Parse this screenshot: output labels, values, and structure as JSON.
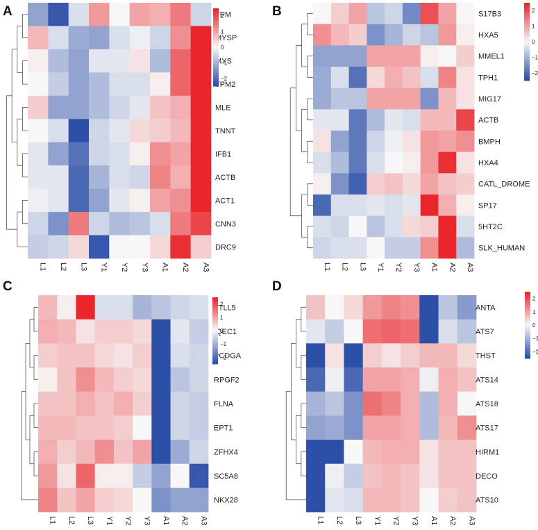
{
  "colors": {
    "low": "#2c4fa8",
    "mid": "#f7f7f7",
    "high": "#e8262b"
  },
  "chart_data": [
    {
      "type": "heatmap",
      "panel_label": "A",
      "columns": [
        "L1",
        "L2",
        "L3",
        "Y1",
        "Y2",
        "Y3",
        "A1",
        "A2",
        "A3"
      ],
      "rows": [
        "TPM",
        "MYSP",
        "MYS",
        "TPM2",
        "MLE",
        "TNNT",
        "IFB1",
        "ACTB",
        "ACT1",
        "CNN3",
        "DRC9"
      ],
      "values": [
        [
          -1.0,
          -1.9,
          -0.3,
          0.9,
          0.0,
          0.8,
          0.7,
          1.2,
          -0.4
        ],
        [
          0.6,
          -0.3,
          -0.9,
          -1.0,
          -0.3,
          -0.1,
          -0.4,
          1.0,
          2.0
        ],
        [
          0.1,
          -0.7,
          -1.0,
          -0.2,
          -0.2,
          0.2,
          -0.7,
          1.4,
          2.0
        ],
        [
          0.0,
          -0.5,
          -1.0,
          -0.7,
          -0.3,
          -0.3,
          0.1,
          1.4,
          2.0
        ],
        [
          0.4,
          -1.0,
          -1.0,
          -0.7,
          -0.4,
          -0.2,
          0.5,
          0.7,
          2.0
        ],
        [
          0.0,
          -0.3,
          -2.0,
          -0.4,
          -0.2,
          0.3,
          0.4,
          0.6,
          2.0
        ],
        [
          -0.2,
          -1.0,
          -1.6,
          -0.4,
          -0.3,
          0.1,
          1.0,
          0.8,
          2.0
        ],
        [
          -0.2,
          -0.2,
          -1.7,
          -0.8,
          -0.3,
          -0.4,
          1.1,
          0.7,
          2.0
        ],
        [
          -0.1,
          -0.2,
          -1.7,
          -1.0,
          -0.2,
          0.1,
          0.8,
          1.0,
          2.0
        ],
        [
          -0.4,
          -1.2,
          1.2,
          -0.4,
          -0.7,
          -0.6,
          -0.3,
          1.2,
          1.7
        ],
        [
          -0.5,
          -0.4,
          0.3,
          -1.9,
          0.0,
          0.0,
          0.3,
          1.9,
          0.4
        ]
      ],
      "legend_ticks": [
        "2",
        "1",
        "0",
        "−1",
        "−2"
      ],
      "legend_range": [
        -2,
        2
      ]
    },
    {
      "type": "heatmap",
      "panel_label": "B",
      "columns": [
        "L1",
        "L2",
        "L3",
        "Y1",
        "Y2",
        "Y3",
        "A1",
        "A2",
        "A3"
      ],
      "rows": [
        "S17B3",
        "HXA5",
        "MMEL1",
        "TPH1",
        "MIG17",
        "ACTB",
        "BMPH",
        "HXA4",
        "CATL_DROME",
        "SP17",
        "5HT2C",
        "SLK_HUMAN"
      ],
      "values": [
        [
          0.0,
          0.4,
          0.8,
          -0.6,
          -0.4,
          -1.3,
          1.6,
          0.8,
          0.0
        ],
        [
          1.0,
          0.6,
          0.4,
          -1.2,
          -0.8,
          -0.4,
          -0.6,
          0.9,
          0.1
        ],
        [
          -1.0,
          -1.0,
          -1.0,
          0.8,
          0.8,
          0.8,
          0.1,
          0.0,
          0.4
        ],
        [
          -0.9,
          -0.3,
          -1.6,
          0.3,
          0.7,
          0.5,
          -0.3,
          1.1,
          0.2
        ],
        [
          -0.9,
          -0.6,
          -0.6,
          0.8,
          0.8,
          0.8,
          -1.2,
          0.6,
          0.2
        ],
        [
          -0.2,
          -0.2,
          -1.5,
          -0.7,
          -0.2,
          -0.3,
          0.6,
          0.6,
          1.7
        ],
        [
          0.2,
          -1.0,
          -1.5,
          -0.4,
          -0.1,
          0.2,
          0.9,
          0.8,
          1.0
        ],
        [
          -0.3,
          -0.7,
          -1.5,
          -0.3,
          0.0,
          0.1,
          0.9,
          1.9,
          0.2
        ],
        [
          0.1,
          -1.2,
          -1.8,
          0.4,
          0.5,
          0.3,
          0.8,
          0.5,
          0.4
        ],
        [
          -1.7,
          -0.3,
          -0.3,
          -0.2,
          -0.3,
          -0.2,
          2.0,
          0.7,
          0.1
        ],
        [
          -0.3,
          -0.4,
          0.0,
          -0.6,
          -0.3,
          0.3,
          0.4,
          2.0,
          -0.3
        ],
        [
          -0.4,
          -0.3,
          -0.3,
          0.0,
          -0.5,
          -0.5,
          1.0,
          2.0,
          -0.7
        ]
      ],
      "legend_ticks": [
        "2",
        "1",
        "0",
        "−1",
        "−2"
      ],
      "legend_range": [
        -2,
        2
      ]
    },
    {
      "type": "heatmap",
      "panel_label": "C",
      "columns": [
        "L1",
        "L2",
        "L3",
        "Y1",
        "Y2",
        "Y3",
        "A1",
        "A2",
        "A3"
      ],
      "rows": [
        "TTLL5",
        "IQEC1",
        "PCDGA",
        "RPGF2",
        "FLNA",
        "EPT1",
        "ZFHX4",
        "SC5A8",
        "NKX28"
      ],
      "values": [
        [
          0.6,
          0.1,
          2.2,
          -0.3,
          -0.3,
          -0.8,
          -0.6,
          -0.4,
          -0.3
        ],
        [
          0.7,
          0.6,
          0.2,
          0.4,
          0.4,
          0.3,
          -2.0,
          -0.2,
          -0.5
        ],
        [
          0.4,
          0.5,
          0.5,
          0.3,
          0.2,
          0.4,
          -2.0,
          -0.3,
          -0.4
        ],
        [
          0.1,
          0.5,
          1.0,
          0.6,
          0.4,
          0.3,
          -2.0,
          -0.6,
          -0.4
        ],
        [
          0.5,
          0.5,
          0.7,
          0.5,
          0.7,
          0.4,
          -2.0,
          -0.4,
          -0.5
        ],
        [
          0.6,
          0.6,
          0.5,
          0.5,
          0.4,
          0.0,
          -2.0,
          -0.4,
          -0.5
        ],
        [
          0.7,
          0.4,
          0.6,
          1.0,
          0.5,
          0.8,
          -2.0,
          -0.9,
          -0.4
        ],
        [
          0.9,
          0.2,
          1.4,
          0.1,
          0.1,
          -0.5,
          -1.0,
          0.0,
          -1.9
        ],
        [
          1.1,
          0.5,
          0.8,
          0.4,
          0.3,
          0.0,
          -1.2,
          -1.0,
          -1.0
        ]
      ],
      "legend_ticks": [
        "2",
        "1",
        "0",
        "−1",
        "−2"
      ],
      "legend_range": [
        -2,
        2
      ]
    },
    {
      "type": "heatmap",
      "panel_label": "D",
      "columns": [
        "L1",
        "L2",
        "L3",
        "Y1",
        "Y2",
        "Y3",
        "A1",
        "A2",
        "A3"
      ],
      "rows": [
        "ANTA",
        "ATS7",
        "THST",
        "ATS14",
        "ATS18",
        "ATS17",
        "HIRM1",
        "DECO",
        "ATS10"
      ],
      "values": [
        [
          0.5,
          0.0,
          0.3,
          0.9,
          1.1,
          1.0,
          -2.0,
          -0.6,
          -1.1
        ],
        [
          -0.2,
          -0.5,
          0.0,
          1.3,
          1.4,
          1.3,
          -2.0,
          -0.3,
          -0.6
        ],
        [
          -2.0,
          0.2,
          -2.0,
          0.4,
          0.2,
          0.4,
          0.6,
          0.6,
          0.3
        ],
        [
          -1.7,
          -0.1,
          -1.7,
          0.8,
          0.8,
          0.7,
          -0.1,
          0.7,
          0.5
        ],
        [
          -0.8,
          -0.6,
          -1.2,
          1.3,
          1.1,
          0.7,
          -0.7,
          0.7,
          0.0
        ],
        [
          -1.0,
          -0.9,
          -1.2,
          0.8,
          0.8,
          0.7,
          -0.7,
          0.6,
          1.0
        ],
        [
          -2.0,
          -2.0,
          0.0,
          0.6,
          0.7,
          0.7,
          0.2,
          0.5,
          0.5
        ],
        [
          -2.0,
          -0.1,
          -0.5,
          0.5,
          0.6,
          0.5,
          0.2,
          0.5,
          0.5
        ],
        [
          -2.0,
          -0.2,
          -0.3,
          0.6,
          0.6,
          0.5,
          0.0,
          0.4,
          0.5
        ]
      ],
      "legend_ticks": [
        "2",
        "1",
        "0",
        "−1",
        "−2"
      ],
      "legend_range": [
        -2,
        2
      ]
    }
  ]
}
